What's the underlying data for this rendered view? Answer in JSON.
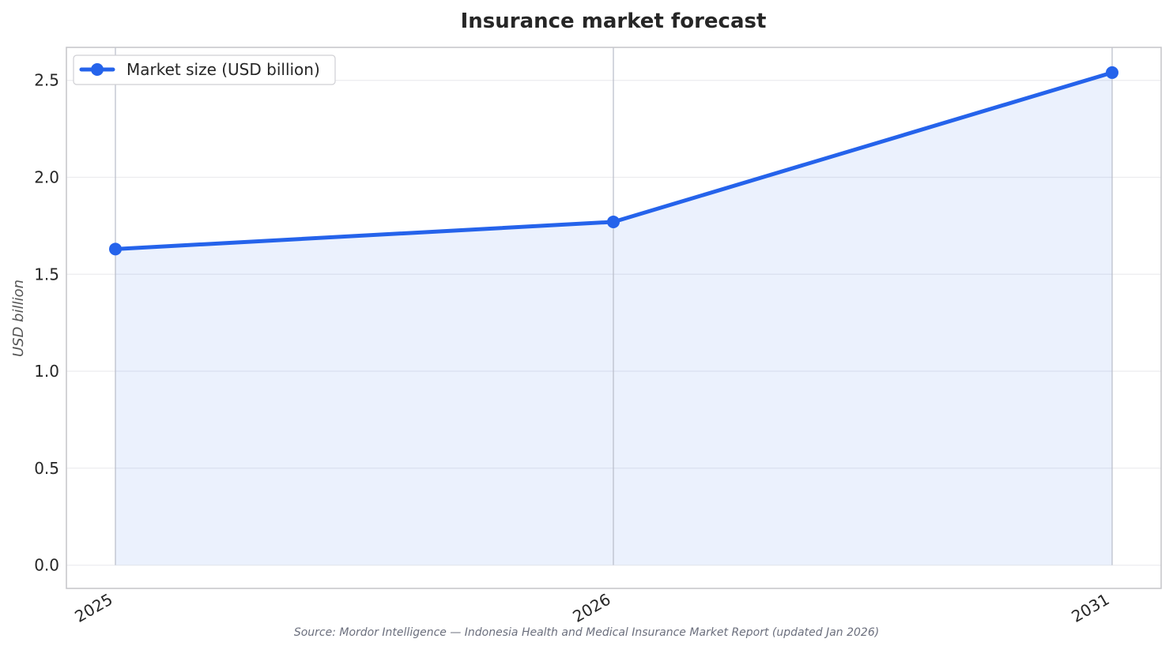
{
  "chart_data": {
    "type": "line",
    "title": "Insurance market forecast",
    "ylabel": "USD billion",
    "xlabel": "",
    "categories": [
      "2025",
      "2026",
      "2031"
    ],
    "series": [
      {
        "name": "Market size (USD billion)",
        "values": [
          1.63,
          1.77,
          2.54
        ],
        "color": "#2563eb"
      }
    ],
    "area_fill": true,
    "ylim": [
      -0.12,
      2.67
    ],
    "yticks": [
      0.0,
      0.5,
      1.0,
      1.5,
      2.0,
      2.5
    ],
    "ytick_labels": [
      "0.0",
      "0.5",
      "1.0",
      "1.5",
      "2.0",
      "2.5"
    ],
    "grid": true,
    "legend_position": "top-left",
    "source": "Source: Mordor Intelligence — Indonesia Health and Medical Insurance Market Report (updated Jan 2026)"
  }
}
